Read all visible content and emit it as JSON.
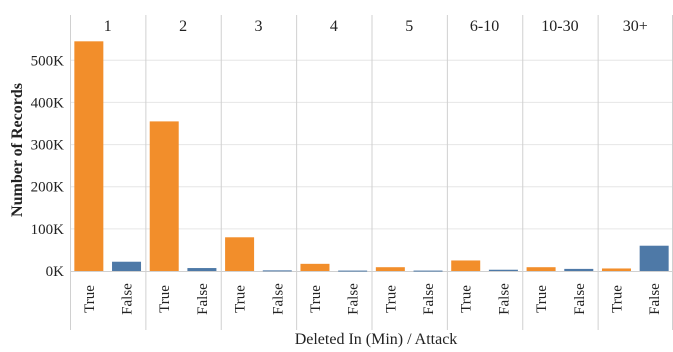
{
  "chart_data": {
    "type": "bar",
    "xlabel": "Deleted In (Min)  /  Attack",
    "ylabel": "Number of Records",
    "ylim": [
      0,
      600000
    ],
    "yticks": [
      {
        "value": 0,
        "label": "0K"
      },
      {
        "value": 100000,
        "label": "100K"
      },
      {
        "value": 200000,
        "label": "200K"
      },
      {
        "value": 300000,
        "label": "300K"
      },
      {
        "value": 400000,
        "label": "400K"
      },
      {
        "value": 500000,
        "label": "500K"
      }
    ],
    "grid": true,
    "colors": {
      "True": "#F28E2B",
      "False": "#4E79A7"
    },
    "groups": [
      {
        "label": "1",
        "bars": [
          {
            "category": "True",
            "value": 545000
          },
          {
            "category": "False",
            "value": 22000
          }
        ]
      },
      {
        "label": "2",
        "bars": [
          {
            "category": "True",
            "value": 355000
          },
          {
            "category": "False",
            "value": 7000
          }
        ]
      },
      {
        "label": "3",
        "bars": [
          {
            "category": "True",
            "value": 80000
          },
          {
            "category": "False",
            "value": 1500
          }
        ]
      },
      {
        "label": "4",
        "bars": [
          {
            "category": "True",
            "value": 17000
          },
          {
            "category": "False",
            "value": 1000
          }
        ]
      },
      {
        "label": "5",
        "bars": [
          {
            "category": "True",
            "value": 9000
          },
          {
            "category": "False",
            "value": 1000
          }
        ]
      },
      {
        "label": "6-10",
        "bars": [
          {
            "category": "True",
            "value": 25000
          },
          {
            "category": "False",
            "value": 3000
          }
        ]
      },
      {
        "label": "10-30",
        "bars": [
          {
            "category": "True",
            "value": 9000
          },
          {
            "category": "False",
            "value": 5000
          }
        ]
      },
      {
        "label": "30+",
        "bars": [
          {
            "category": "True",
            "value": 6000
          },
          {
            "category": "False",
            "value": 60000
          }
        ]
      }
    ]
  }
}
